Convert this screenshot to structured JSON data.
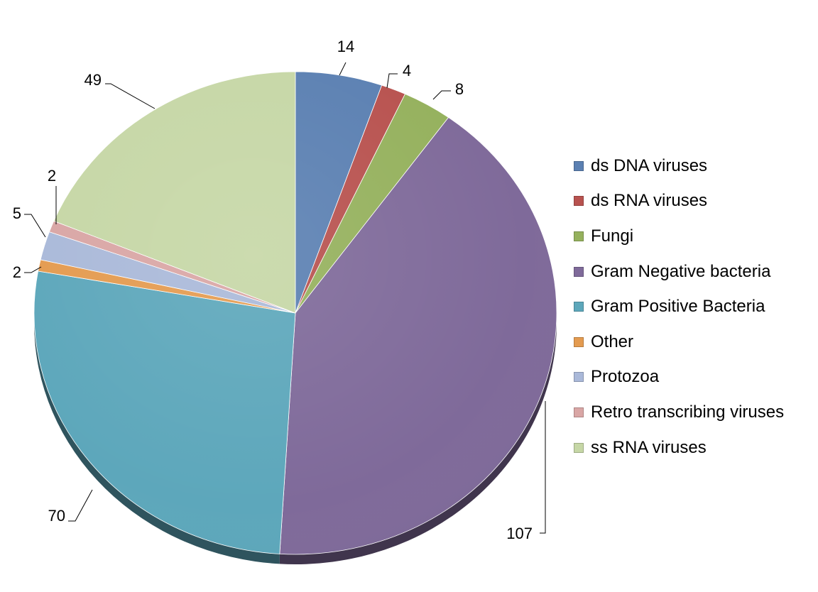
{
  "chart_data": {
    "type": "pie",
    "title": "",
    "legend_position": "right",
    "slices": [
      {
        "name": "ds DNA viruses",
        "value": 14,
        "label": "14",
        "color": "#5B80B2"
      },
      {
        "name": "ds RNA viruses",
        "value": 4,
        "label": "4",
        "color": "#B8524F"
      },
      {
        "name": "Fungi",
        "value": 8,
        "label": "8",
        "color": "#95B15D"
      },
      {
        "name": "Gram Negative bacteria",
        "value": 107,
        "label": "107",
        "color": "#7F6A9A"
      },
      {
        "name": "Gram Positive Bacteria",
        "value": 70,
        "label": "70",
        "color": "#5DA7BB"
      },
      {
        "name": "Other",
        "value": 2,
        "label": "2",
        "color": "#E49B50"
      },
      {
        "name": "Protozoa",
        "value": 5,
        "label": "5",
        "color": "#AAB9D9"
      },
      {
        "name": "Retro transcribing viruses",
        "value": 2,
        "label": "2",
        "color": "#D9A6A5"
      },
      {
        "name": "ss RNA viruses",
        "value": 49,
        "label": "49",
        "color": "#C6D7A6"
      }
    ]
  }
}
